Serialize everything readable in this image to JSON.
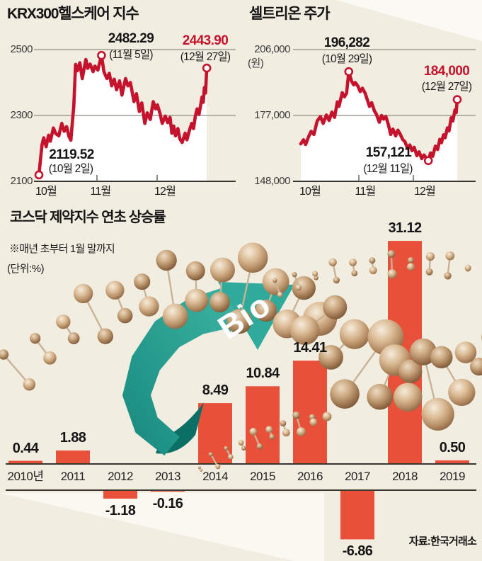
{
  "colors": {
    "background": "#f2ede1",
    "line_red": "#c5122d",
    "bar_red": "#e9503a",
    "teal": "#2faa9b",
    "grid": "#8f8b82",
    "axis": "#39352f",
    "sphere_copper": "#c9a27c"
  },
  "krx_chart": {
    "title": "KRX300헬스케어 지수",
    "y_ticks": [
      "2500",
      "2300",
      "2100"
    ],
    "x_ticks": [
      "10월",
      "11월",
      "12월"
    ],
    "peak_value": "2482.29",
    "peak_date": "(11월 5일)",
    "end_value": "2443.90",
    "end_date": "(12월 27일)",
    "start_value": "2119.52",
    "start_date": "(10월 2일)",
    "chart_data": {
      "type": "line",
      "title": "KRX300헬스케어 지수",
      "y_gridlines": [
        2500,
        2300,
        2100
      ],
      "ylim": [
        2100,
        2500
      ],
      "x_months": [
        "10월",
        "11월",
        "12월"
      ],
      "annotated_points": [
        {
          "label": "start",
          "value": 2119.52,
          "date": "10월 2일"
        },
        {
          "label": "peak",
          "value": 2482.29,
          "date": "11월 5일"
        },
        {
          "label": "end",
          "value": 2443.9,
          "date": "12월 27일"
        }
      ],
      "markers": [
        "first",
        "max",
        "last"
      ],
      "series": [
        [
          0,
          2119.52
        ],
        [
          0.05,
          2210
        ],
        [
          0.08,
          2232
        ],
        [
          0.12,
          2205
        ],
        [
          0.16,
          2240
        ],
        [
          0.19,
          2222
        ],
        [
          0.24,
          2262
        ],
        [
          0.28,
          2245
        ],
        [
          0.33,
          2238
        ],
        [
          0.38,
          2276
        ],
        [
          0.42,
          2252
        ],
        [
          0.46,
          2266
        ],
        [
          0.5,
          2236
        ],
        [
          0.53,
          2225
        ],
        [
          0.58,
          2330
        ],
        [
          0.61,
          2455
        ],
        [
          0.64,
          2436
        ],
        [
          0.68,
          2460
        ],
        [
          0.72,
          2412
        ],
        [
          0.78,
          2470
        ],
        [
          0.81,
          2443
        ],
        [
          0.85,
          2456
        ],
        [
          0.9,
          2433
        ],
        [
          0.93,
          2450
        ],
        [
          0.98,
          2438
        ],
        [
          1.04,
          2482.29
        ],
        [
          1.08,
          2433
        ],
        [
          1.13,
          2412
        ],
        [
          1.17,
          2428
        ],
        [
          1.21,
          2390
        ],
        [
          1.25,
          2410
        ],
        [
          1.29,
          2378
        ],
        [
          1.34,
          2405
        ],
        [
          1.38,
          2362
        ],
        [
          1.44,
          2412
        ],
        [
          1.48,
          2390
        ],
        [
          1.52,
          2400
        ],
        [
          1.58,
          2342
        ],
        [
          1.62,
          2366
        ],
        [
          1.67,
          2312
        ],
        [
          1.71,
          2338
        ],
        [
          1.76,
          2276
        ],
        [
          1.8,
          2308
        ],
        [
          1.85,
          2288
        ],
        [
          1.9,
          2342
        ],
        [
          1.94,
          2320
        ],
        [
          1.97,
          2332
        ],
        [
          2.01,
          2308
        ],
        [
          2.05,
          2276
        ],
        [
          2.1,
          2298
        ],
        [
          2.14,
          2278
        ],
        [
          2.18,
          2294
        ],
        [
          2.21,
          2246
        ],
        [
          2.24,
          2268
        ],
        [
          2.27,
          2238
        ],
        [
          2.31,
          2260
        ],
        [
          2.34,
          2230
        ],
        [
          2.38,
          2218
        ],
        [
          2.43,
          2246
        ],
        [
          2.46,
          2226
        ],
        [
          2.5,
          2254
        ],
        [
          2.54,
          2276
        ],
        [
          2.57,
          2260
        ],
        [
          2.6,
          2298
        ],
        [
          2.63,
          2320
        ],
        [
          2.66,
          2303
        ],
        [
          2.69,
          2332
        ],
        [
          2.71,
          2356
        ],
        [
          2.73,
          2340
        ],
        [
          2.75,
          2385
        ],
        [
          2.77,
          2368
        ],
        [
          2.79,
          2443.9
        ]
      ]
    }
  },
  "celltrion_chart": {
    "title": "셀트리온 주가",
    "y_unit": "(원)",
    "y_ticks": [
      "206,000",
      "177,000",
      "148,000"
    ],
    "x_ticks": [
      "10월",
      "11월",
      "12월"
    ],
    "peak_value": "196,282",
    "peak_date": "(10월 29일)",
    "end_value": "184,000",
    "end_date": "(12월 27일)",
    "low_value": "157,121",
    "low_date": "(12월 11일)",
    "chart_data": {
      "type": "line",
      "title": "셀트리온 주가",
      "y_unit": "원",
      "y_gridlines": [
        206000,
        177000,
        148000
      ],
      "ylim": [
        148000,
        206000
      ],
      "x_months": [
        "10월",
        "11월",
        "12월"
      ],
      "annotated_points": [
        {
          "label": "peak",
          "value": 196282,
          "date": "10월 29일"
        },
        {
          "label": "low",
          "value": 157121,
          "date": "12월 11일"
        },
        {
          "label": "end",
          "value": 184000,
          "date": "12월 27일"
        }
      ],
      "markers": [
        "max",
        "min",
        "last"
      ],
      "series": [
        [
          0,
          164500
        ],
        [
          0.05,
          166300
        ],
        [
          0.09,
          164200
        ],
        [
          0.14,
          167500
        ],
        [
          0.19,
          170000
        ],
        [
          0.24,
          168600
        ],
        [
          0.3,
          174500
        ],
        [
          0.36,
          176500
        ],
        [
          0.41,
          173500
        ],
        [
          0.47,
          177200
        ],
        [
          0.52,
          174800
        ],
        [
          0.57,
          178500
        ],
        [
          0.62,
          176200
        ],
        [
          0.67,
          183000
        ],
        [
          0.7,
          181000
        ],
        [
          0.76,
          187000
        ],
        [
          0.8,
          185200
        ],
        [
          0.84,
          186800
        ],
        [
          0.88,
          196282
        ],
        [
          0.93,
          192200
        ],
        [
          0.97,
          190500
        ],
        [
          1.0,
          191500
        ],
        [
          1.05,
          189800
        ],
        [
          1.09,
          187500
        ],
        [
          1.13,
          189000
        ],
        [
          1.18,
          186800
        ],
        [
          1.22,
          184000
        ],
        [
          1.26,
          181000
        ],
        [
          1.3,
          182600
        ],
        [
          1.35,
          179000
        ],
        [
          1.39,
          177400
        ],
        [
          1.44,
          174000
        ],
        [
          1.48,
          177000
        ],
        [
          1.52,
          175400
        ],
        [
          1.56,
          176600
        ],
        [
          1.61,
          172600
        ],
        [
          1.65,
          168600
        ],
        [
          1.69,
          171000
        ],
        [
          1.74,
          168000
        ],
        [
          1.78,
          170500
        ],
        [
          1.82,
          169000
        ],
        [
          1.87,
          166400
        ],
        [
          1.91,
          165500
        ],
        [
          1.96,
          162400
        ],
        [
          2.0,
          164000
        ],
        [
          2.04,
          161500
        ],
        [
          2.08,
          163000
        ],
        [
          2.13,
          159300
        ],
        [
          2.17,
          161000
        ],
        [
          2.22,
          158000
        ],
        [
          2.26,
          159600
        ],
        [
          2.34,
          157121
        ],
        [
          2.38,
          160500
        ],
        [
          2.42,
          159000
        ],
        [
          2.47,
          163500
        ],
        [
          2.51,
          162000
        ],
        [
          2.55,
          166500
        ],
        [
          2.58,
          165000
        ],
        [
          2.62,
          168500
        ],
        [
          2.65,
          167200
        ],
        [
          2.69,
          171500
        ],
        [
          2.72,
          170200
        ],
        [
          2.76,
          176000
        ],
        [
          2.79,
          174600
        ],
        [
          2.83,
          179500
        ],
        [
          2.85,
          178200
        ],
        [
          2.87,
          184000
        ]
      ]
    }
  },
  "kosdaq_chart": {
    "title": "코스닥 제약지수 연초 상승률",
    "note": "※매년 초부터 1월 말까지",
    "unit": "(단위:%)",
    "source": "자료:한국거래소",
    "chart_data": {
      "type": "bar",
      "title": "코스닥 제약지수 연초 상승률",
      "ylabel": "%",
      "categories": [
        "2010년",
        "2011",
        "2012",
        "2013",
        "2014",
        "2015",
        "2016",
        "2017",
        "2018",
        "2019"
      ],
      "values": [
        0.44,
        1.88,
        -1.18,
        -0.16,
        8.49,
        10.84,
        14.41,
        -6.86,
        31.12,
        0.5
      ]
    }
  },
  "decor": {
    "bio_label": "Bio"
  }
}
